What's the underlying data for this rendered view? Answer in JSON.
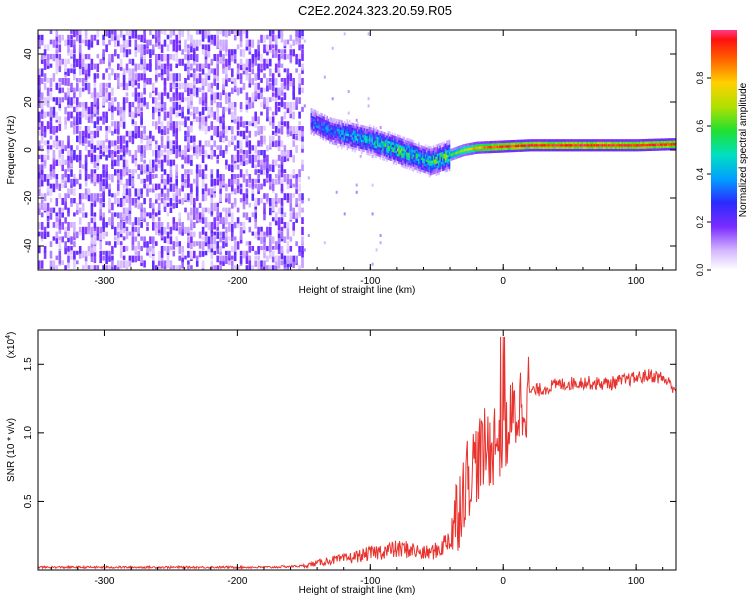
{
  "title": "C2E2.2024.323.20.59.R05",
  "chart_data": [
    {
      "type": "heatmap",
      "xlabel": "Height of straight line (km)",
      "ylabel": "Frequency (Hz)",
      "xlim": [
        -350,
        130
      ],
      "ylim": [
        -50,
        50
      ],
      "xticks": [
        -300,
        -200,
        -100,
        0,
        100
      ],
      "yticks": [
        -40,
        -20,
        0,
        20,
        40
      ],
      "xtick_labels": [
        "-300",
        "-200",
        "-100",
        "0",
        "100"
      ],
      "ytick_labels": [
        "-40",
        "-20",
        "0",
        "20",
        "40"
      ],
      "colorbar": {
        "label": "Normalized spectral amplitude",
        "range": [
          0,
          1
        ],
        "ticks": [
          0.0,
          0.2,
          0.4,
          0.6,
          0.8
        ],
        "tick_labels": [
          "0.0",
          "0.2",
          "0.4",
          "0.6",
          "0.8"
        ]
      },
      "signal_track": {
        "x": [
          -145,
          -130,
          -115,
          -100,
          -90,
          -80,
          -70,
          -60,
          -55,
          -50,
          -40,
          -30,
          -20,
          0,
          20,
          50,
          80,
          100,
          130
        ],
        "freq": [
          12,
          8,
          6,
          4,
          2,
          0,
          -2,
          -4,
          -5,
          -4,
          -2,
          0,
          1,
          1.5,
          2,
          2,
          2,
          2,
          2.5
        ],
        "amplitude": [
          0.3,
          0.35,
          0.4,
          0.45,
          0.5,
          0.55,
          0.5,
          0.45,
          0.5,
          0.55,
          0.6,
          0.7,
          0.85,
          0.95,
          0.97,
          0.98,
          0.97,
          0.96,
          0.95
        ]
      },
      "noise_region": {
        "x_from": -350,
        "x_to": -150,
        "amplitude": 0.15
      }
    },
    {
      "type": "line",
      "xlabel": "Height of straight line (km)",
      "ylabel": "SNR (10 * v/v)",
      "y_scale_note": "(x10",
      "y_scale_exp": "4",
      "xlim": [
        -350,
        130
      ],
      "ylim": [
        0,
        1.75
      ],
      "xticks": [
        -300,
        -200,
        -100,
        0,
        100
      ],
      "yticks": [
        0.5,
        1.0,
        1.5
      ],
      "xtick_labels": [
        "-300",
        "-200",
        "-100",
        "0",
        "100"
      ],
      "ytick_labels": [
        "0.5",
        "1.0",
        "1.5"
      ],
      "series": [
        {
          "color": "#e8322e",
          "x": [
            -350,
            -300,
            -250,
            -200,
            -175,
            -150,
            -140,
            -130,
            -120,
            -110,
            -100,
            -90,
            -80,
            -70,
            -60,
            -50,
            -45,
            -40,
            -35,
            -30,
            -25,
            -20,
            -15,
            -10,
            -5,
            0,
            5,
            10,
            15,
            20,
            30,
            40,
            50,
            60,
            70,
            80,
            90,
            100,
            110,
            120,
            130
          ],
          "y": [
            0.02,
            0.02,
            0.02,
            0.02,
            0.02,
            0.03,
            0.05,
            0.07,
            0.08,
            0.1,
            0.12,
            0.14,
            0.15,
            0.15,
            0.12,
            0.14,
            0.18,
            0.25,
            0.4,
            0.6,
            0.72,
            0.8,
            0.85,
            0.9,
            0.95,
            1.0,
            1.05,
            1.15,
            1.25,
            1.3,
            1.32,
            1.35,
            1.36,
            1.37,
            1.36,
            1.36,
            1.38,
            1.4,
            1.42,
            1.4,
            1.32
          ]
        }
      ]
    }
  ]
}
